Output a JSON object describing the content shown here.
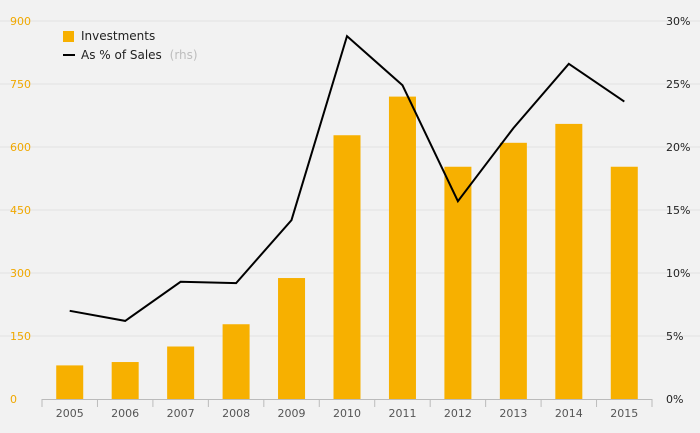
{
  "chart_data": {
    "type": "bar",
    "categories": [
      "2005",
      "2006",
      "2007",
      "2008",
      "2009",
      "2010",
      "2011",
      "2012",
      "2013",
      "2014",
      "2015"
    ],
    "series": [
      {
        "name": "Investments",
        "type": "bar",
        "axis": "left",
        "color": "#f7b000",
        "values": [
          80,
          88,
          125,
          178,
          288,
          628,
          720,
          553,
          610,
          655,
          553
        ]
      },
      {
        "name": "As % of Sales",
        "name_note": "(rhs)",
        "type": "line",
        "axis": "right",
        "color": "#000000",
        "values": [
          7.0,
          6.2,
          9.3,
          9.2,
          14.2,
          28.8,
          24.9,
          15.7,
          21.5,
          26.6,
          23.6
        ]
      }
    ],
    "y_left": {
      "ylim": [
        0,
        900
      ],
      "ticks": [
        0,
        150,
        300,
        450,
        600,
        750,
        900
      ],
      "tick_labels": [
        "0",
        "150",
        "300",
        "450",
        "600",
        "750",
        "900"
      ],
      "label_color": "#f0a800"
    },
    "y_right": {
      "ylim": [
        0,
        30
      ],
      "ticks": [
        0,
        5,
        10,
        15,
        20,
        25,
        30
      ],
      "tick_labels": [
        "0%",
        "5%",
        "10%",
        "15%",
        "20%",
        "25%",
        "30%"
      ]
    },
    "grid": true,
    "legend_position": "top-left"
  }
}
